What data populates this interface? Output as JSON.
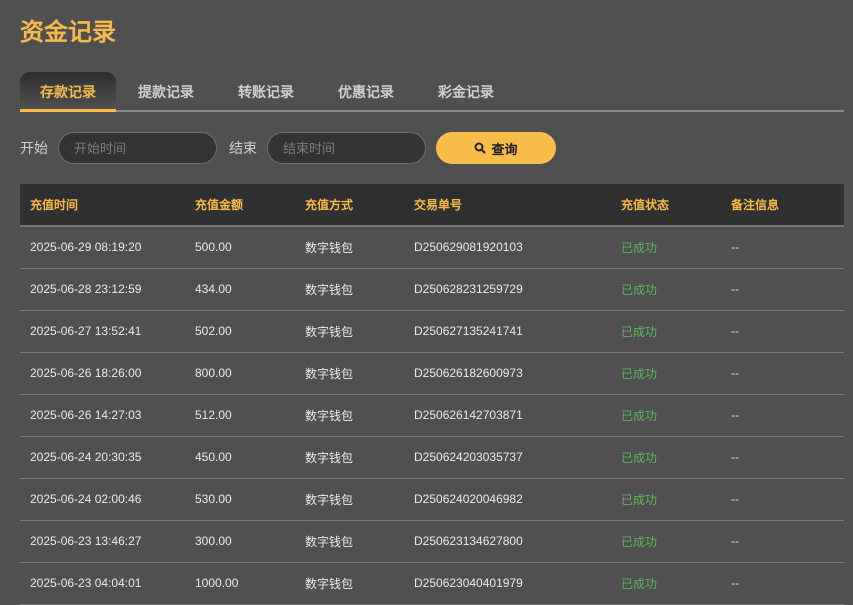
{
  "title": "资金记录",
  "tabs": [
    {
      "label": "存款记录",
      "active": true
    },
    {
      "label": "提款记录"
    },
    {
      "label": "转账记录"
    },
    {
      "label": "优惠记录"
    },
    {
      "label": "彩金记录"
    }
  ],
  "filter": {
    "start_label": "开始",
    "start_placeholder": "开始时间",
    "end_label": "结束",
    "end_placeholder": "结束时间",
    "search_label": "查询",
    "search_icon": "search-icon"
  },
  "colors": {
    "accent": "#f9b94a",
    "success": "#5fb45f",
    "background": "#505050"
  },
  "table": {
    "headers": [
      "充值时间",
      "充值金额",
      "充值方式",
      "交易单号",
      "充值状态",
      "备注信息"
    ],
    "rows": [
      [
        "2025-06-29 08:19:20",
        "500.00",
        "数字钱包",
        "D250629081920103",
        "已成功",
        "--"
      ],
      [
        "2025-06-28 23:12:59",
        "434.00",
        "数字钱包",
        "D250628231259729",
        "已成功",
        "--"
      ],
      [
        "2025-06-27 13:52:41",
        "502.00",
        "数字钱包",
        "D250627135241741",
        "已成功",
        "--"
      ],
      [
        "2025-06-26 18:26:00",
        "800.00",
        "数字钱包",
        "D250626182600973",
        "已成功",
        "--"
      ],
      [
        "2025-06-26 14:27:03",
        "512.00",
        "数字钱包",
        "D250626142703871",
        "已成功",
        "--"
      ],
      [
        "2025-06-24 20:30:35",
        "450.00",
        "数字钱包",
        "D250624203035737",
        "已成功",
        "--"
      ],
      [
        "2025-06-24 02:00:46",
        "530.00",
        "数字钱包",
        "D250624020046982",
        "已成功",
        "--"
      ],
      [
        "2025-06-23 13:46:27",
        "300.00",
        "数字钱包",
        "D250623134627800",
        "已成功",
        "--"
      ],
      [
        "2025-06-23 04:04:01",
        "1000.00",
        "数字钱包",
        "D250623040401979",
        "已成功",
        "--"
      ]
    ]
  }
}
